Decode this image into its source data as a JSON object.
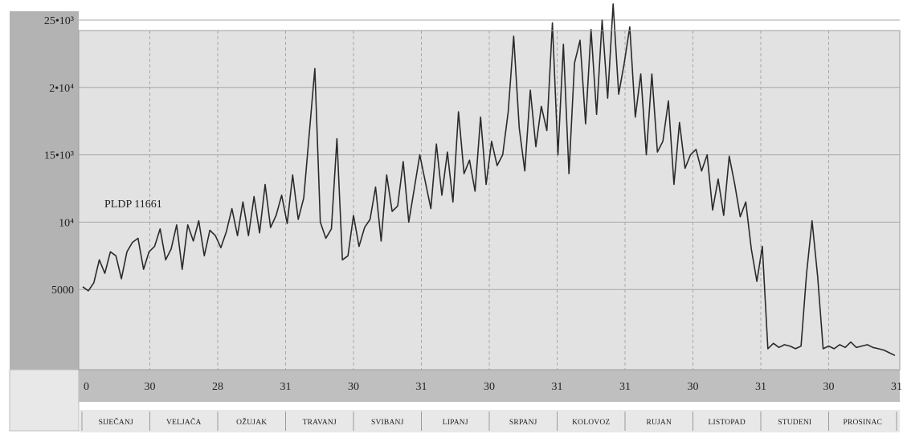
{
  "chart_data": {
    "type": "line",
    "title": "",
    "xlabel": "",
    "ylabel": "",
    "annotation": "PLDP 11661",
    "ylim": [
      0,
      26000
    ],
    "y_ticks": [
      {
        "value": 5000,
        "label": "5000"
      },
      {
        "value": 10000,
        "label": "10⁴"
      },
      {
        "value": 15000,
        "label": "15•10³"
      },
      {
        "value": 20000,
        "label": "2•10⁴"
      },
      {
        "value": 25000,
        "label": "25•10³"
      }
    ],
    "day_ticks": [
      "0",
      "30",
      "28",
      "31",
      "30",
      "31",
      "30",
      "31",
      "31",
      "30",
      "31",
      "30",
      "31"
    ],
    "months": [
      "SIJEČANJ",
      "VELJAČA",
      "OŽUJAK",
      "TRAVANJ",
      "SVIBANJ",
      "LIPANJ",
      "SRPANJ",
      "KOLOVOZ",
      "RUJAN",
      "LISTOPAD",
      "STUDENI",
      "PROSINAC"
    ],
    "grid": true,
    "series": [
      {
        "values": [
          5200,
          4900,
          5500,
          7200,
          6200,
          7800,
          7500,
          5800,
          7800,
          8500,
          8800,
          6500,
          7800,
          8200,
          9500,
          7200,
          8000,
          9800,
          6500,
          9800,
          8600,
          10100,
          7500,
          9400,
          9000,
          8100,
          9300,
          11000,
          9000,
          11500,
          9000,
          11900,
          9200,
          12800,
          9600,
          10500,
          12000,
          9900,
          13500,
          10200,
          11800,
          16600,
          21400,
          10000,
          8800,
          9500,
          16200,
          7200,
          7500,
          10500,
          8200,
          9600,
          10200,
          12600,
          8600,
          13500,
          10800,
          11200,
          14500,
          10000,
          12500,
          15000,
          13000,
          11000,
          15800,
          12000,
          15200,
          11500,
          18200,
          13600,
          14600,
          12300,
          17800,
          12800,
          16000,
          14200,
          15000,
          18200,
          23800,
          17000,
          13800,
          19800,
          15600,
          18600,
          16800,
          24800,
          15000,
          23200,
          13600,
          21800,
          23500,
          17300,
          24300,
          18000,
          25000,
          19200,
          26200,
          19500,
          21800,
          24500,
          17800,
          21000,
          15000,
          21000,
          15200,
          16000,
          19000,
          12800,
          17400,
          14000,
          15000,
          15400,
          13800,
          15000,
          10900,
          13200,
          10500,
          14900,
          12800,
          10400,
          11500,
          8000,
          5600,
          8200,
          600,
          1000,
          700,
          900,
          800,
          600,
          800,
          6200,
          10100,
          6000,
          600,
          800,
          600,
          900,
          700,
          1100,
          700,
          800,
          900,
          700,
          600,
          500,
          300,
          100
        ]
      }
    ]
  }
}
